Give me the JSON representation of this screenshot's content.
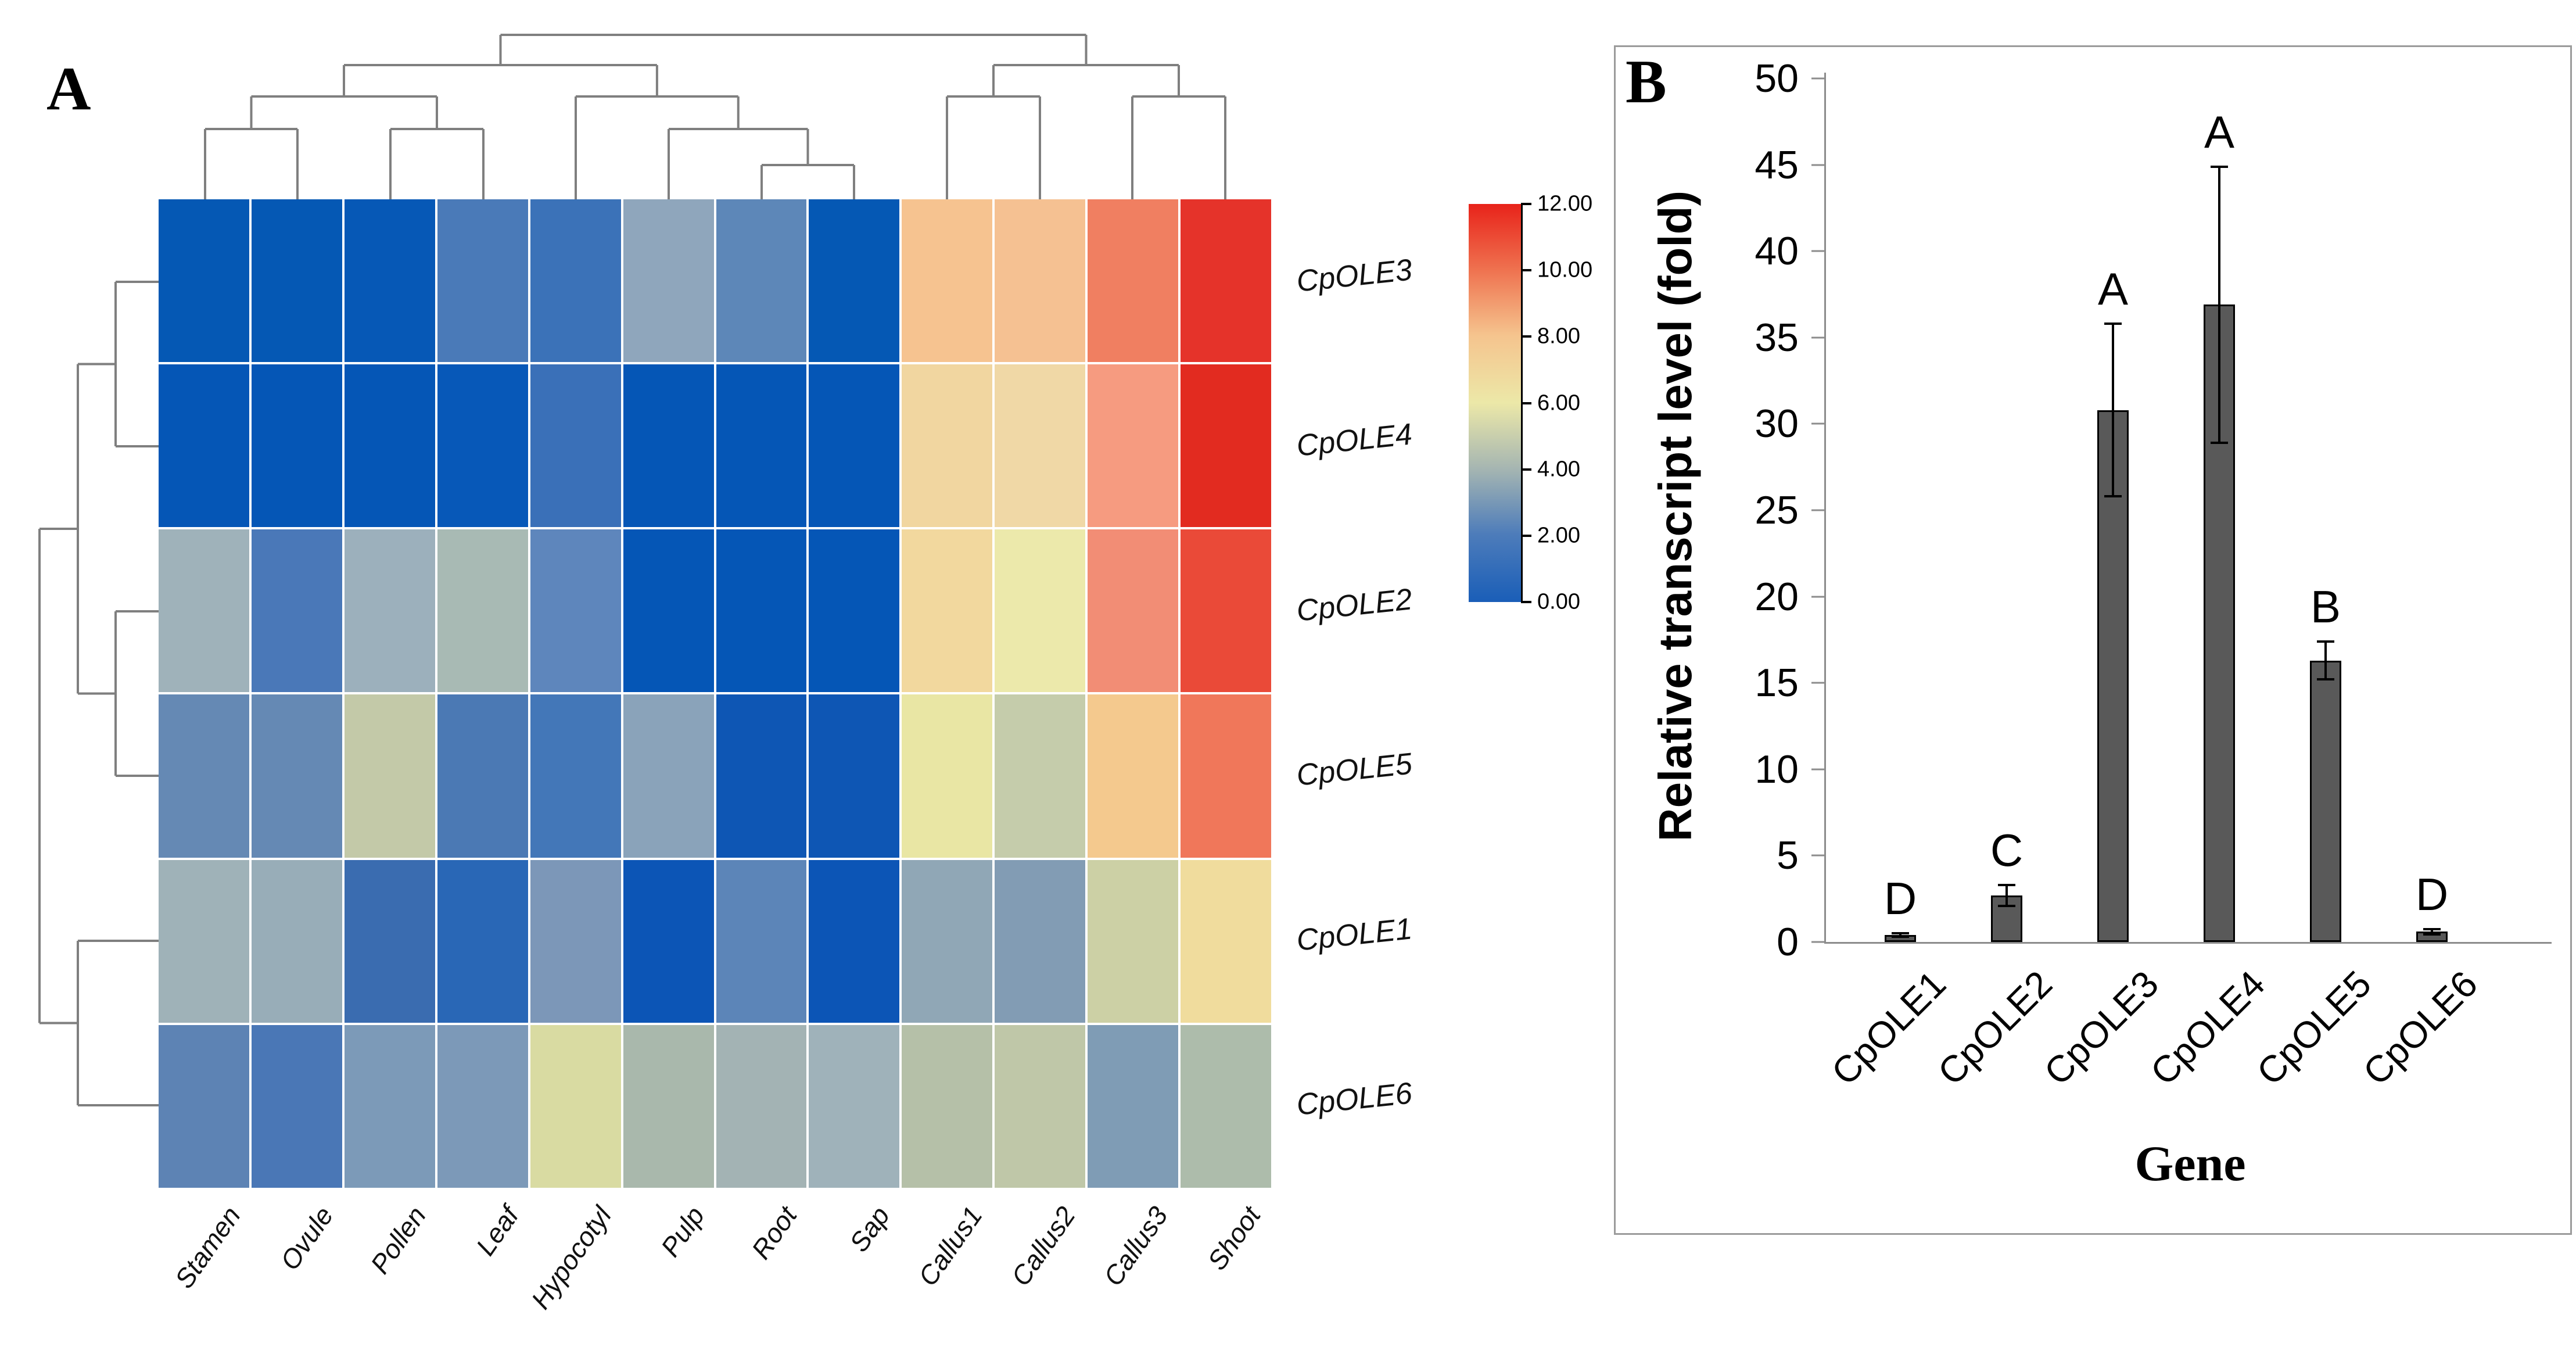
{
  "panels": {
    "a": "A",
    "b": "B"
  },
  "chart_data": [
    {
      "type": "heatmap",
      "title": "Expression heatmap of CpOLE genes across tissues (hierarchically clustered)",
      "columns": [
        "Stamen",
        "Ovule",
        "Pollen",
        "Leaf",
        "Hypocotyl",
        "Pulp",
        "Root",
        "Sap",
        "Callus1",
        "Callus2",
        "Callus3",
        "Shoot"
      ],
      "rows": [
        "CpOLE3",
        "CpOLE4",
        "CpOLE2",
        "CpOLE5",
        "CpOLE1",
        "CpOLE6"
      ],
      "values": [
        [
          0.3,
          0.3,
          0.3,
          1.9,
          1.5,
          3.5,
          2.3,
          0.3,
          7.2,
          7.2,
          9.4,
          11.3
        ],
        [
          0.3,
          0.3,
          0.3,
          0.4,
          1.4,
          0.3,
          0.3,
          0.3,
          6.6,
          6.7,
          8.6,
          11.6
        ],
        [
          3.9,
          1.9,
          3.8,
          4.2,
          2.7,
          0.3,
          0.3,
          0.3,
          6.5,
          6.0,
          9.0,
          10.7
        ],
        [
          2.5,
          2.5,
          5.0,
          1.9,
          1.8,
          3.4,
          0.4,
          0.4,
          5.9,
          5.0,
          7.2,
          9.6
        ],
        [
          3.9,
          3.8,
          1.6,
          1.1,
          3.2,
          0.3,
          2.3,
          0.3,
          3.7,
          3.3,
          5.3,
          6.5
        ],
        [
          2.3,
          1.8,
          3.1,
          3.1,
          5.6,
          4.4,
          4.2,
          4.1,
          4.7,
          5.0,
          3.3,
          4.5
        ]
      ],
      "cell_colors": [
        [
          "#0558b4",
          "#0558b4",
          "#0658b6",
          "#4a7ab8",
          "#3b72b8",
          "#8fa6bc",
          "#5d87b8",
          "#0558b4",
          "#f6c390",
          "#f5c192",
          "#f07f61",
          "#e5332a"
        ],
        [
          "#0556b6",
          "#0556b6",
          "#0556b6",
          "#0758b8",
          "#3a70b8",
          "#0556b6",
          "#0556b6",
          "#0556b6",
          "#f1d6a0",
          "#f0d8a6",
          "#f69b80",
          "#e22b20"
        ],
        [
          "#9fb2ba",
          "#4a78b8",
          "#9cb0bc",
          "#a8bab4",
          "#5e86bc",
          "#0556b6",
          "#0556b6",
          "#0556b6",
          "#f2d89e",
          "#ece9ab",
          "#f28d75",
          "#ea4a38"
        ],
        [
          "#6589b4",
          "#6589b4",
          "#c3c9a8",
          "#4b79b4",
          "#4377b8",
          "#8aa3ba",
          "#0e56b4",
          "#0e56b4",
          "#e9e6a4",
          "#c5ccab",
          "#f4c98e",
          "#f0775a"
        ],
        [
          "#9fb2b8",
          "#98adb8",
          "#3a6cb0",
          "#2967b6",
          "#7c97b8",
          "#0c55b6",
          "#5c85b8",
          "#0c55b6",
          "#90a7b6",
          "#829cb4",
          "#ccd0a5",
          "#f0dc9d"
        ],
        [
          "#5d83b4",
          "#4a77b6",
          "#7c9ab8",
          "#7c99b8",
          "#d9dba2",
          "#a9b8ac",
          "#a3b3b4",
          "#9fb2ba",
          "#b5c0a8",
          "#bfc7a8",
          "#7f9cb5",
          "#adbcab"
        ]
      ],
      "colorbar": {
        "min": 0,
        "max": 12,
        "tick_labels": [
          "12.00",
          "10.00",
          "8.00",
          "6.00",
          "4.00",
          "2.00",
          "0.00"
        ],
        "low_color": "#1a5eb8",
        "mid_color": "#ece8a8",
        "high_color": "#e8231a"
      },
      "column_dendrogram": "((((Stamen,Ovule),(Pollen,Leaf)),(Hypocotyl,(Pulp,(Root,Sap)))),((Callus1,Callus2),(Callus3,Shoot)))",
      "row_dendrogram": "(((CpOLE3,CpOLE4),(CpOLE2,CpOLE5)),(CpOLE1,CpOLE6))"
    },
    {
      "type": "bar",
      "categories": [
        "CpOLE1",
        "CpOLE2",
        "CpOLE3",
        "CpOLE4",
        "CpOLE5",
        "CpOLE6"
      ],
      "values": [
        0.4,
        2.7,
        30.8,
        36.9,
        16.3,
        0.6
      ],
      "errors": [
        0.1,
        0.6,
        5.0,
        8.0,
        1.1,
        0.15
      ],
      "letters": [
        "D",
        "C",
        "A",
        "A",
        "B",
        "D"
      ],
      "ylabel": "Relative transcript level (fold)",
      "xlabel": "Gene",
      "ylim": [
        0,
        50
      ],
      "ytick_step": 5,
      "grid": false,
      "bar_color": "#595959"
    }
  ]
}
